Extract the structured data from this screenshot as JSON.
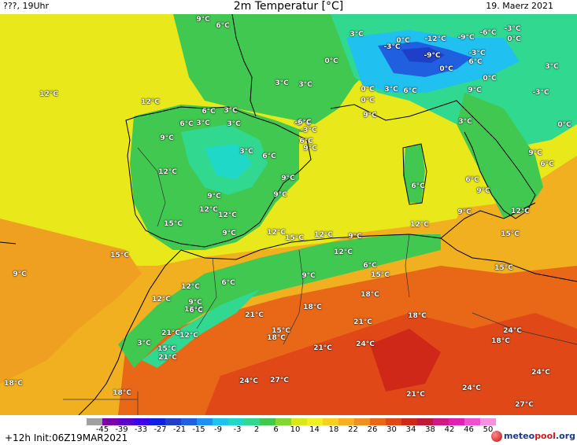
{
  "header": {
    "left": "???, 19Uhr",
    "title": "2m Temperatur [°C]",
    "date": "19. Maerz 2021"
  },
  "colors": {
    "cold_blue": "#1f3fc8",
    "cyan": "#2ec8c8",
    "green": "#3fc850",
    "yellow": "#e8e81a",
    "orange": "#f0a020",
    "dark_orange": "#e86818",
    "red": "#d83018"
  },
  "temp_labels": [
    "9°C",
    "6°C",
    "3°C",
    "0°C",
    "-3°C",
    "0°C",
    "-12°C",
    "-9°C",
    "-6°C",
    "-3°C",
    "0°C",
    "-9°C",
    "0°C",
    "-3°C",
    "6°C",
    "3°C",
    "0°C",
    "12°C",
    "12°C",
    "6°C",
    "3°C",
    "3°C",
    "0°C",
    "3°C",
    "6°C",
    "3°C",
    "-3°C",
    "9°C",
    "0°C",
    "3°C",
    "-3°C",
    "0°C",
    "6°C",
    "3°C",
    "3°C",
    "-6°C",
    "-3°C",
    "9°C",
    "6°C",
    "9°C",
    "3°C",
    "6°C",
    "9°C",
    "9°C",
    "6°C",
    "12°C",
    "9°C",
    "6°C",
    "9°C",
    "12°C",
    "9°C",
    "12°C",
    "6°C",
    "9°C",
    "9°C",
    "12°C",
    "9°C",
    "15°C",
    "12°C",
    "15°C",
    "12°C",
    "9°C",
    "12°C",
    "15°C",
    "15°C",
    "12°C",
    "6°C",
    "9°C",
    "6°C",
    "9°C",
    "15°C",
    "15°C",
    "12°C",
    "18°C",
    "12°C",
    "15°C",
    "18°C",
    "21°C",
    "18°C",
    "15°C",
    "21°C",
    "18°C",
    "21°C",
    "24°C",
    "24°C",
    "18°C",
    "21°C",
    "3°C",
    "12°C",
    "21°C",
    "15°C",
    "18°C",
    "18°C",
    "24°C",
    "27°C",
    "21°C",
    "24°C",
    "24°C",
    "27°C",
    "9°C",
    "6°C"
  ],
  "colorbar": {
    "ticks": [
      "-45",
      "-39",
      "-33",
      "-27",
      "-21",
      "-15",
      "-9",
      "-3",
      "2",
      "6",
      "10",
      "14",
      "18",
      "22",
      "26",
      "30",
      "34",
      "38",
      "42",
      "46",
      "50"
    ],
    "colors": [
      "#a0a0a0",
      "#7a00a8",
      "#5a00c8",
      "#3a00e8",
      "#1020e0",
      "#1f3fc8",
      "#2060e0",
      "#2090f0",
      "#20c0f0",
      "#20d8c8",
      "#30d890",
      "#40c850",
      "#80d830",
      "#d8e818",
      "#f0f020",
      "#f8d020",
      "#f8b020",
      "#f09020",
      "#e86818",
      "#e04818",
      "#d02818",
      "#c01838",
      "#d01880",
      "#e020b0",
      "#f050d0",
      "#f890e0"
    ]
  },
  "init": "+12h Init:06Z19MAR2021",
  "logo": {
    "meteo": "meteo",
    "pool": "pool",
    "domain": ".org"
  }
}
